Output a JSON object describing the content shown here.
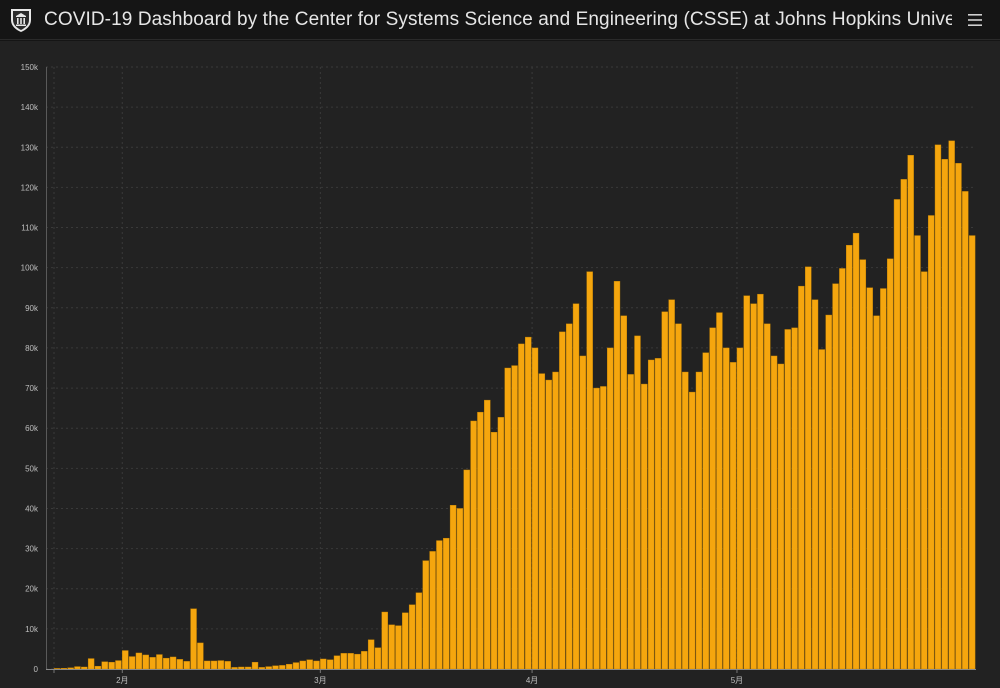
{
  "header": {
    "title": "COVID-19 Dashboard by the Center for Systems Science and Engineering (CSSE) at Johns Hopkins Unive…",
    "logo_icon": "university-shield-icon",
    "menu_icon": "hamburger-menu-icon"
  },
  "colors": {
    "bar": "#F5A60E",
    "bar_edge": "#c98500",
    "grid": "#3a3a3a",
    "background": "#222222"
  },
  "chart_data": {
    "type": "bar",
    "title": "",
    "xlabel": "",
    "ylabel": "",
    "ylim": [
      0,
      150000
    ],
    "y_ticks": [
      {
        "value": 0,
        "label": "0"
      },
      {
        "value": 10000,
        "label": "10k"
      },
      {
        "value": 20000,
        "label": "20k"
      },
      {
        "value": 30000,
        "label": "30k"
      },
      {
        "value": 40000,
        "label": "40k"
      },
      {
        "value": 50000,
        "label": "50k"
      },
      {
        "value": 60000,
        "label": "60k"
      },
      {
        "value": 70000,
        "label": "70k"
      },
      {
        "value": 80000,
        "label": "80k"
      },
      {
        "value": 90000,
        "label": "90k"
      },
      {
        "value": 100000,
        "label": "100k"
      },
      {
        "value": 110000,
        "label": "110k"
      },
      {
        "value": 120000,
        "label": "120k"
      },
      {
        "value": 130000,
        "label": "130k"
      },
      {
        "value": 140000,
        "label": "140k"
      },
      {
        "value": 150000,
        "label": "150k"
      }
    ],
    "x_ticks": [
      {
        "index": 0,
        "label": ""
      },
      {
        "index": 10,
        "label": "2月"
      },
      {
        "index": 39,
        "label": "3月"
      },
      {
        "index": 70,
        "label": "4月"
      },
      {
        "index": 100,
        "label": "5月"
      }
    ],
    "grid": true,
    "legend": "none",
    "values": [
      100,
      200,
      300,
      600,
      500,
      2600,
      700,
      1800,
      1700,
      2100,
      4600,
      3100,
      4000,
      3500,
      2900,
      3600,
      2700,
      3000,
      2400,
      1900,
      15000,
      6500,
      2000,
      2000,
      2100,
      1900,
      400,
      500,
      500,
      1700,
      400,
      600,
      800,
      900,
      1200,
      1600,
      2000,
      2300,
      2000,
      2500,
      2300,
      3300,
      3900,
      3900,
      3700,
      4400,
      7300,
      5300,
      14200,
      11000,
      10800,
      14000,
      16000,
      19000,
      27000,
      29300,
      32000,
      32600,
      40800,
      40000,
      49600,
      61800,
      64000,
      67000,
      59000,
      62700,
      75000,
      75600,
      81000,
      82700,
      80000,
      73600,
      72000,
      74000,
      84000,
      86000,
      91000,
      78000,
      99000,
      70000,
      70400,
      80000,
      96600,
      88000,
      73400,
      83000,
      71000,
      77000,
      77400,
      89000,
      92000,
      86000,
      74000,
      69000,
      74000,
      78800,
      85000,
      88800,
      80000,
      76400,
      80000,
      93000,
      91000,
      93400,
      86000,
      78000,
      76000,
      84600,
      85000,
      95400,
      100200,
      92000,
      79600,
      88200,
      96000,
      99800,
      105600,
      108600,
      102000,
      95000,
      88000,
      94800,
      102200,
      117000,
      122000,
      128000,
      108000,
      99000,
      113000,
      130600,
      127000,
      131600,
      126000,
      119000,
      108000
    ]
  }
}
